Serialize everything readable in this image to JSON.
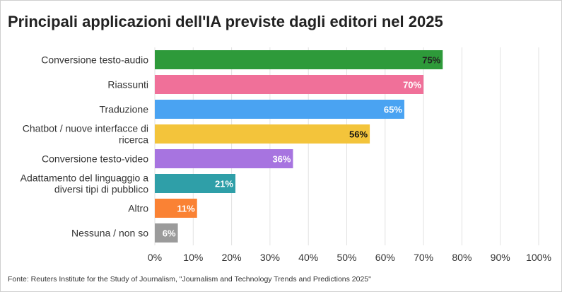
{
  "chart_data": {
    "type": "bar",
    "orientation": "horizontal",
    "title": "Principali applicazioni dell'IA previste dagli editori nel 2025",
    "categories": [
      [
        "Conversione testo-audio"
      ],
      [
        "Riassunti"
      ],
      [
        "Traduzione"
      ],
      [
        "Chatbot / nuove interfacce di",
        "ricerca"
      ],
      [
        "Conversione testo-video"
      ],
      [
        "Adattamento del linguaggio a",
        "diversi tipi di pubblico"
      ],
      [
        "Altro"
      ],
      [
        "Nessuna / non so"
      ]
    ],
    "values": [
      75,
      70,
      65,
      56,
      36,
      21,
      11,
      6
    ],
    "value_labels": [
      "75%",
      "70%",
      "65%",
      "56%",
      "36%",
      "21%",
      "11%",
      "6%"
    ],
    "colors": [
      "#2e9a3a",
      "#f07099",
      "#4aa3f2",
      "#f3c43b",
      "#a774e0",
      "#2f9fa8",
      "#fa8234",
      "#9b9b9b"
    ],
    "label_colors": [
      "#222222",
      "#ffffff",
      "#ffffff",
      "#111111",
      "#ffffff",
      "#ffffff",
      "#ffffff",
      "#ffffff"
    ],
    "xlim": [
      0,
      100
    ],
    "xticks": [
      0,
      10,
      20,
      30,
      40,
      50,
      60,
      70,
      80,
      90,
      100
    ],
    "xtick_labels": [
      "0%",
      "10%",
      "20%",
      "30%",
      "40%",
      "50%",
      "60%",
      "70%",
      "80%",
      "90%",
      "100%"
    ],
    "grid": true,
    "xlabel": "",
    "ylabel": ""
  },
  "source": "Fonte: Reuters Institute for the Study of Journalism, \"Journalism and Technology Trends and Predictions 2025\""
}
